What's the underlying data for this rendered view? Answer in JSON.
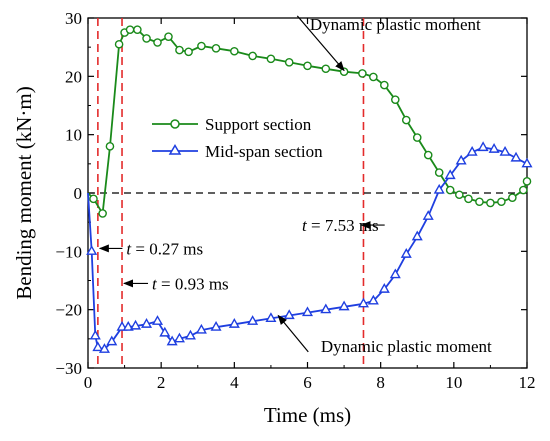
{
  "chart_data": {
    "type": "line",
    "xlabel": "Time (ms)",
    "ylabel": "Bending moment (kN·m)",
    "xlim": [
      0,
      12
    ],
    "ylim": [
      -30,
      30
    ],
    "xticks": [
      0,
      2,
      4,
      6,
      8,
      10,
      12
    ],
    "yticks": [
      -30,
      -20,
      -10,
      0,
      10,
      20,
      30
    ],
    "grid": false,
    "legend_position": "center-left",
    "series": [
      {
        "name": "Support section",
        "color": "#1a8a1a",
        "marker": "circle",
        "x": [
          0,
          0.15,
          0.4,
          0.6,
          0.85,
          1.0,
          1.15,
          1.35,
          1.6,
          1.9,
          2.2,
          2.5,
          2.75,
          3.1,
          3.5,
          4.0,
          4.5,
          5.0,
          5.5,
          6.0,
          6.5,
          7.0,
          7.5,
          7.8,
          8.1,
          8.4,
          8.7,
          9.0,
          9.3,
          9.6,
          9.9,
          10.15,
          10.4,
          10.7,
          11.0,
          11.3,
          11.6,
          11.9,
          12.0
        ],
        "y": [
          0,
          -1.0,
          -3.5,
          8.0,
          25.5,
          27.5,
          28.0,
          28.0,
          26.5,
          25.8,
          26.8,
          24.5,
          24.2,
          25.2,
          24.8,
          24.3,
          23.5,
          23.0,
          22.4,
          21.8,
          21.3,
          20.8,
          20.5,
          19.9,
          18.5,
          16.0,
          12.5,
          9.5,
          6.5,
          3.5,
          0.5,
          -0.3,
          -1.0,
          -1.5,
          -1.7,
          -1.5,
          -0.8,
          0.5,
          2.0
        ]
      },
      {
        "name": "Mid-span section",
        "color": "#1f3fe0",
        "marker": "triangle",
        "x": [
          0,
          0.1,
          0.2,
          0.27,
          0.45,
          0.65,
          0.93,
          1.1,
          1.3,
          1.6,
          1.9,
          2.1,
          2.3,
          2.5,
          2.8,
          3.1,
          3.5,
          4.0,
          4.5,
          5.0,
          5.5,
          6.0,
          6.5,
          7.0,
          7.53,
          7.8,
          8.1,
          8.4,
          8.7,
          9.0,
          9.3,
          9.6,
          9.9,
          10.2,
          10.5,
          10.8,
          11.1,
          11.4,
          11.7,
          12.0
        ],
        "y": [
          0,
          -10.0,
          -24.5,
          -26.5,
          -26.8,
          -25.5,
          -23.0,
          -23.0,
          -22.8,
          -22.5,
          -22.0,
          -24.0,
          -25.5,
          -25.0,
          -24.5,
          -23.5,
          -23.0,
          -22.5,
          -22.0,
          -21.5,
          -21.0,
          -20.5,
          -20.0,
          -19.5,
          -19.0,
          -18.5,
          -16.5,
          -14.0,
          -10.5,
          -7.5,
          -4.0,
          0.5,
          3.0,
          5.5,
          7.0,
          7.8,
          7.5,
          7.0,
          6.0,
          5.0
        ]
      }
    ],
    "zero_line": {
      "y": 0,
      "style": "dashed",
      "color": "#000000"
    },
    "vlines": [
      {
        "x": 0.27,
        "color": "#e32b2b"
      },
      {
        "x": 0.93,
        "color": "#e32b2b"
      },
      {
        "x": 7.53,
        "color": "#e32b2b"
      }
    ],
    "annotations": [
      {
        "id": "dpm_top",
        "text": "Dynamic plastic moment",
        "arrow_to": [
          7.0,
          21.0
        ],
        "text_at": [
          8.4,
          29.0
        ]
      },
      {
        "id": "dpm_bottom",
        "text": "Dynamic plastic moment",
        "arrow_to": [
          5.2,
          -21.0
        ],
        "text_at": [
          8.7,
          -26.2
        ]
      },
      {
        "id": "t1",
        "text_var": "t",
        "text_rest": " = 0.27 ms",
        "arrow_to": [
          0.27,
          -9.5
        ],
        "text_at": [
          1.05,
          -9.5
        ]
      },
      {
        "id": "t2",
        "text_var": "t",
        "text_rest": " = 0.93 ms",
        "arrow_to": [
          0.93,
          -15.5
        ],
        "text_at": [
          1.75,
          -15.5
        ]
      },
      {
        "id": "t3",
        "text_var": "t",
        "text_rest": " = 7.53 ms",
        "arrow_to": [
          7.53,
          -5.5
        ],
        "text_at": [
          5.85,
          -5.5
        ]
      }
    ]
  }
}
